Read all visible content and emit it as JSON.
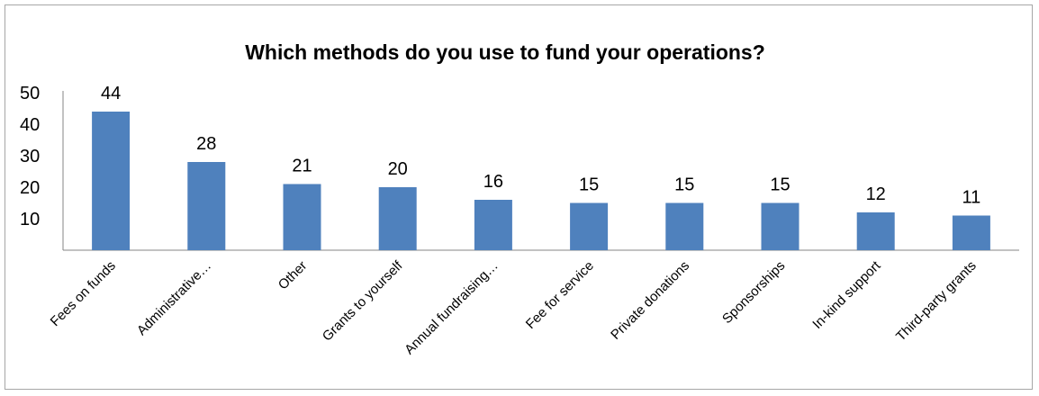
{
  "chart_data": {
    "type": "bar",
    "title": "Which methods do you use to fund your operations?",
    "categories": [
      "Fees on funds",
      "Administrative…",
      "Other",
      "Grants to yourself",
      "Annual fundraising…",
      "Fee for service",
      "Private donations",
      "Sponsorships",
      "In-kind support",
      "Third-party grants"
    ],
    "values": [
      44,
      28,
      21,
      20,
      16,
      15,
      15,
      15,
      12,
      11
    ],
    "data_labels": [
      "44",
      "28",
      "21",
      "20",
      "16",
      "15",
      "15",
      "15",
      "12",
      "11"
    ],
    "yticks": [
      "10",
      "20",
      "30",
      "40",
      "50"
    ],
    "ylim": [
      0,
      50
    ],
    "xlabel": "",
    "ylabel": "",
    "grid": false,
    "legend": "none",
    "bar_color": "#4f81bd"
  }
}
